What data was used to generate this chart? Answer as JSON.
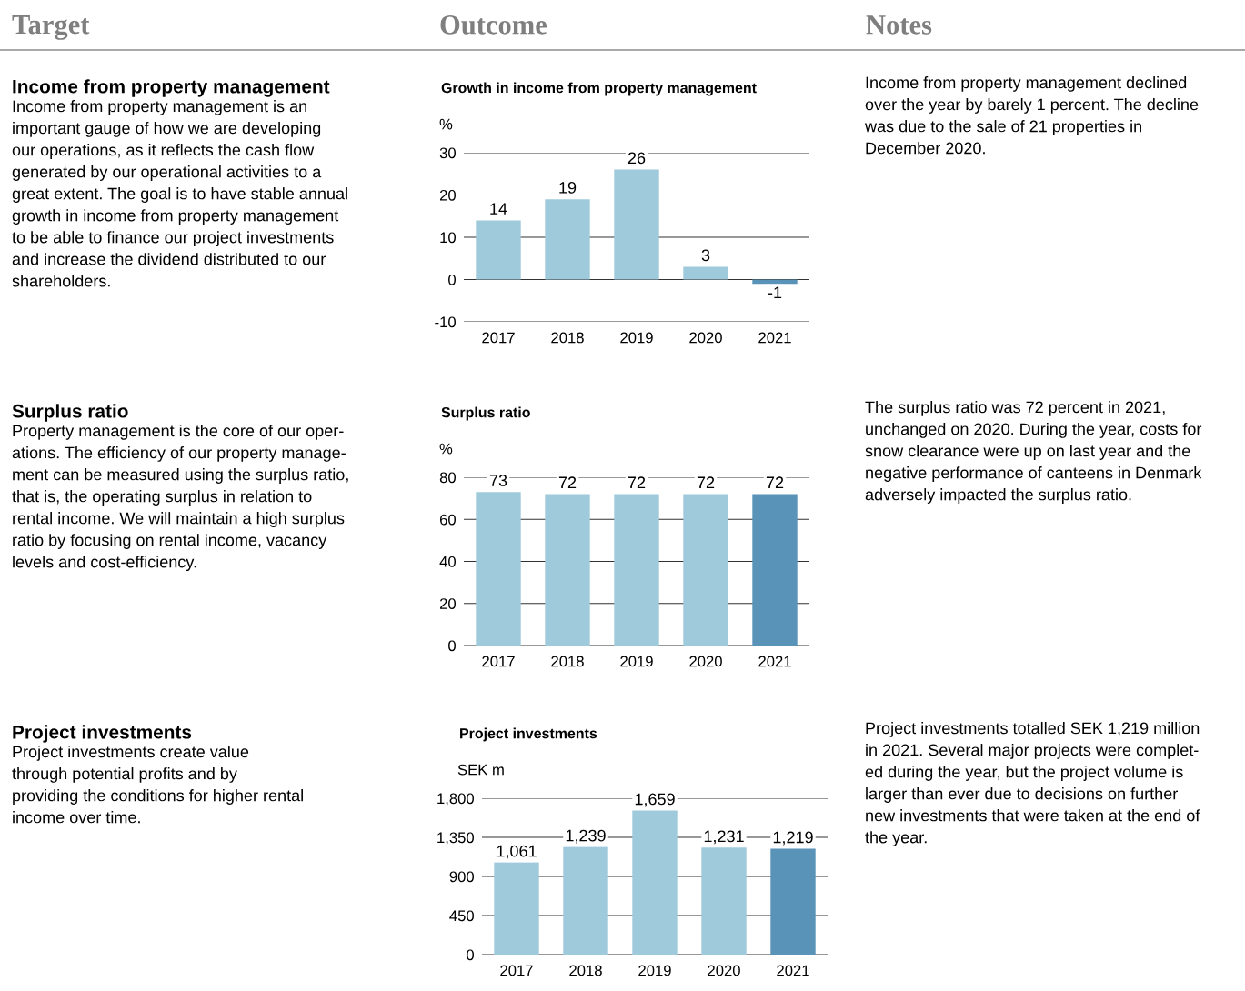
{
  "chart_data": [
    {
      "type": "bar",
      "title": "Growth in income from property management",
      "ylabel": "%",
      "categories": [
        "2017",
        "2018",
        "2019",
        "2020",
        "2021"
      ],
      "values": [
        14,
        19,
        26,
        3,
        -1
      ],
      "colors": [
        "#9ecadb",
        "#9ecadb",
        "#9ecadb",
        "#9ecadb",
        "#5a93b8"
      ],
      "ylim": [
        -10,
        30
      ],
      "yticks": [
        -10,
        0,
        10,
        20,
        30
      ],
      "grid": "y",
      "data_labels": true,
      "legend": false,
      "annotations": [
        "Target",
        "Outcome",
        "Notes",
        "Income from property management",
        "Income from property management is an\nimportant gauge of how we are developing\nour operations, as it reflects the cash flow\ngenerated by our operational activities to a\ngreat extent. The goal is to have stable annual\ngrowth in income from property management\nto be able to finance our project investments\nand increase the dividend distributed to our\nshareholders.",
        "Income from property management declined\nover the year by barely 1 percent. The decline\nwas due to the sale of 21 properties in\nDecember 2020."
      ]
    },
    {
      "type": "bar",
      "title": "Surplus ratio",
      "ylabel": "%",
      "categories": [
        "2017",
        "2018",
        "2019",
        "2020",
        "2021"
      ],
      "values": [
        73,
        72,
        72,
        72,
        72
      ],
      "colors": [
        "#9ecadb",
        "#9ecadb",
        "#9ecadb",
        "#9ecadb",
        "#5a93b8"
      ],
      "ylim": [
        0,
        80
      ],
      "yticks": [
        0,
        20,
        40,
        60,
        80
      ],
      "grid": "y",
      "data_labels": true,
      "legend": false,
      "annotations": [
        "Surplus ratio",
        "Property management is the core of our oper-\nations. The efficiency of our property manage-\nment can be measured using the surplus ratio,\nthat is, the operating surplus in relation to\nrental income. We will maintain a high surplus\nratio by focusing on rental income, vacancy\nlevels and cost-efficiency.",
        "The surplus ratio was 72 percent in 2021,\nunchanged on 2020. During the year, costs for\nsnow clearance were up on last year and the\nnegative performance of canteens in Denmark\nadversely impacted the surplus ratio."
      ]
    },
    {
      "type": "bar",
      "title": "Project investments",
      "ylabel": "SEK m",
      "categories": [
        "2017",
        "2018",
        "2019",
        "2020",
        "2021"
      ],
      "values": [
        1061,
        1239,
        1659,
        1231,
        1219
      ],
      "value_labels": [
        "1,061",
        "1,239",
        "1,659",
        "1,231",
        "1,219"
      ],
      "colors": [
        "#9ecadb",
        "#9ecadb",
        "#9ecadb",
        "#9ecadb",
        "#5a93b8"
      ],
      "ylim": [
        0,
        1800
      ],
      "yticks": [
        0,
        450,
        900,
        {
          "value": 1350,
          "label": "1,350"
        },
        {
          "value": 1800,
          "label": "1,800"
        }
      ],
      "grid": "y",
      "legend": false,
      "annotations": [
        "Project investments",
        "Project investments create value\nthrough potential profits and by\nproviding the conditions for higher rental\nincome over time.",
        "Project investments totalled SEK 1,219 million\nin 2021. Several major projects were complet-\ned during the year, but the project volume is\nlarger than ever due to decisions on further\nnew investments that were taken at the end of\nthe year."
      ]
    }
  ]
}
